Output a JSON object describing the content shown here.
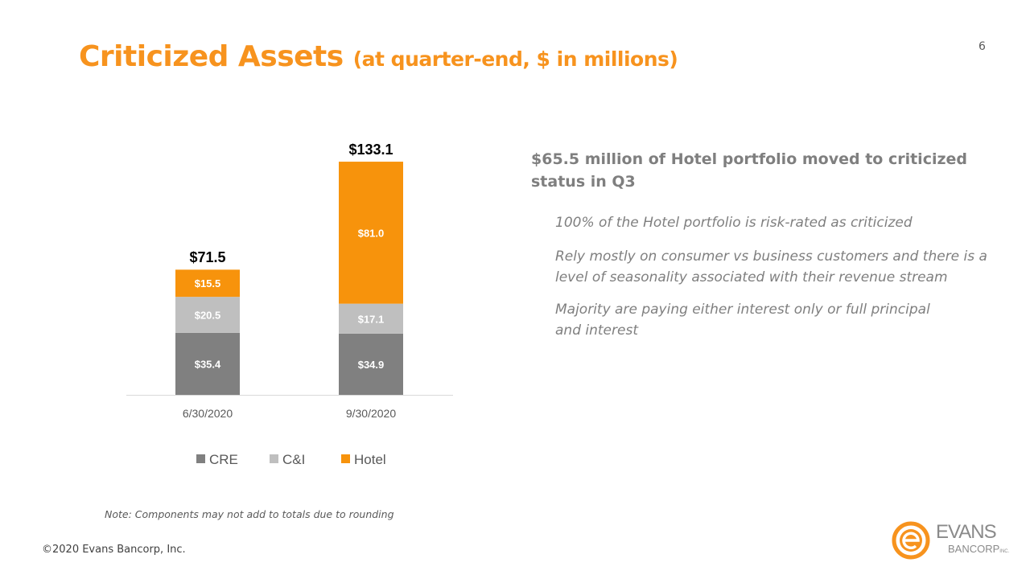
{
  "title": {
    "main": "Criticized Assets",
    "sub": "(at quarter-end, $ in millions)"
  },
  "page_number": "6",
  "chart_data": {
    "type": "stacked-bar",
    "categories": [
      "6/30/2020",
      "9/30/2020"
    ],
    "series": [
      {
        "name": "CRE",
        "values": [
          35.4,
          34.9
        ],
        "labels": [
          "$35.4",
          "$34.9"
        ],
        "color": "#808080"
      },
      {
        "name": "C&I",
        "values": [
          20.5,
          17.1
        ],
        "labels": [
          "$20.5",
          "$17.1"
        ],
        "color": "#BFBFBF"
      },
      {
        "name": "Hotel",
        "values": [
          15.5,
          81.0
        ],
        "labels": [
          "$15.5",
          "$81.0"
        ],
        "color": "#F7930C"
      }
    ],
    "totals": [
      71.5,
      133.1
    ],
    "total_labels": [
      "$71.5",
      "$133.1"
    ],
    "legend_position": "bottom",
    "grid": false
  },
  "headline": "$65.5 million of Hotel portfolio moved to criticized status in Q3",
  "bullets": [
    "100% of the Hotel portfolio is risk-rated as criticized",
    "Rely mostly on consumer vs business customers and there is a level of seasonality associated with their revenue stream",
    "Majority are paying either interest only or full principal and interest"
  ],
  "note": "Note: Components may not add to totals due to rounding",
  "footer": "©2020 Evans Bancorp, Inc.",
  "logo": {
    "line1": "EVANS",
    "line2": "BANCORP",
    "suffix": "INC.",
    "color": "#F7931E"
  }
}
